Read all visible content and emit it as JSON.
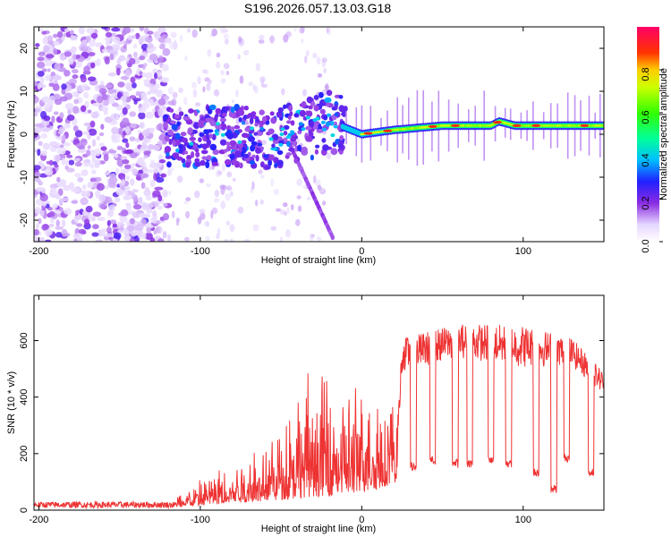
{
  "title": "S196.2026.057.13.03.G18",
  "chart_data": [
    {
      "type": "heatmap",
      "name": "spectrogram",
      "xlabel": "Height of straight line (km)",
      "ylabel": "Frequency (Hz)",
      "xlim": [
        -203,
        150
      ],
      "ylim": [
        -25,
        25
      ],
      "xticks": [
        -200,
        -100,
        0,
        100
      ],
      "yticks": [
        -20,
        -10,
        0,
        10,
        20
      ],
      "colorbar": {
        "label": "Normalized spectral amplitude",
        "range": [
          0.0,
          1.0
        ],
        "ticks": [
          0.0,
          0.2,
          0.4,
          0.6,
          0.8
        ],
        "tick_labels": [
          "0.0",
          "0.2",
          "0.4",
          "0.6",
          "0.8"
        ]
      },
      "ridge": {
        "description_points": [
          {
            "x": -120,
            "y": -1
          },
          {
            "x": -90,
            "y": 0
          },
          {
            "x": -60,
            "y": -1
          },
          {
            "x": -40,
            "y": 0
          },
          {
            "x": -20,
            "y": 3
          },
          {
            "x": 0,
            "y": 0
          },
          {
            "x": 20,
            "y": 1
          },
          {
            "x": 50,
            "y": 2
          },
          {
            "x": 80,
            "y": 2
          },
          {
            "x": 85,
            "y": 3
          },
          {
            "x": 95,
            "y": 2
          },
          {
            "x": 120,
            "y": 2
          },
          {
            "x": 150,
            "y": 2
          }
        ]
      }
    },
    {
      "type": "line",
      "name": "snr",
      "xlabel": "Height of straight line (km)",
      "ylabel": "SNR (10 * v/v)",
      "xlim": [
        -203,
        150
      ],
      "ylim": [
        0,
        760
      ],
      "xticks": [
        -200,
        -100,
        0,
        100
      ],
      "yticks": [
        0,
        200,
        400,
        600
      ],
      "color": "#ee3333",
      "envelope": [
        {
          "x": -203,
          "base": 15,
          "spread": 15
        },
        {
          "x": -120,
          "base": 15,
          "spread": 15
        },
        {
          "x": -110,
          "base": 30,
          "spread": 40
        },
        {
          "x": -80,
          "base": 60,
          "spread": 120
        },
        {
          "x": -50,
          "base": 90,
          "spread": 220
        },
        {
          "x": -30,
          "base": 120,
          "spread": 400
        },
        {
          "x": -10,
          "base": 130,
          "spread": 300
        },
        {
          "x": 10,
          "base": 180,
          "spread": 250
        },
        {
          "x": 22,
          "base": 250,
          "spread": 100
        },
        {
          "x": 25,
          "base": 550,
          "spread": 120
        },
        {
          "x": 60,
          "base": 600,
          "spread": 120
        },
        {
          "x": 100,
          "base": 580,
          "spread": 150
        },
        {
          "x": 130,
          "base": 560,
          "spread": 100
        },
        {
          "x": 150,
          "base": 450,
          "spread": 80
        }
      ],
      "dropouts": [
        {
          "x": 32,
          "level": 140
        },
        {
          "x": 44,
          "level": 160
        },
        {
          "x": 58,
          "level": 150
        },
        {
          "x": 67,
          "level": 150
        },
        {
          "x": 80,
          "level": 160
        },
        {
          "x": 91,
          "level": 150
        },
        {
          "x": 108,
          "level": 120
        },
        {
          "x": 119,
          "level": 60
        },
        {
          "x": 127,
          "level": 170
        },
        {
          "x": 142,
          "level": 120
        }
      ]
    }
  ]
}
